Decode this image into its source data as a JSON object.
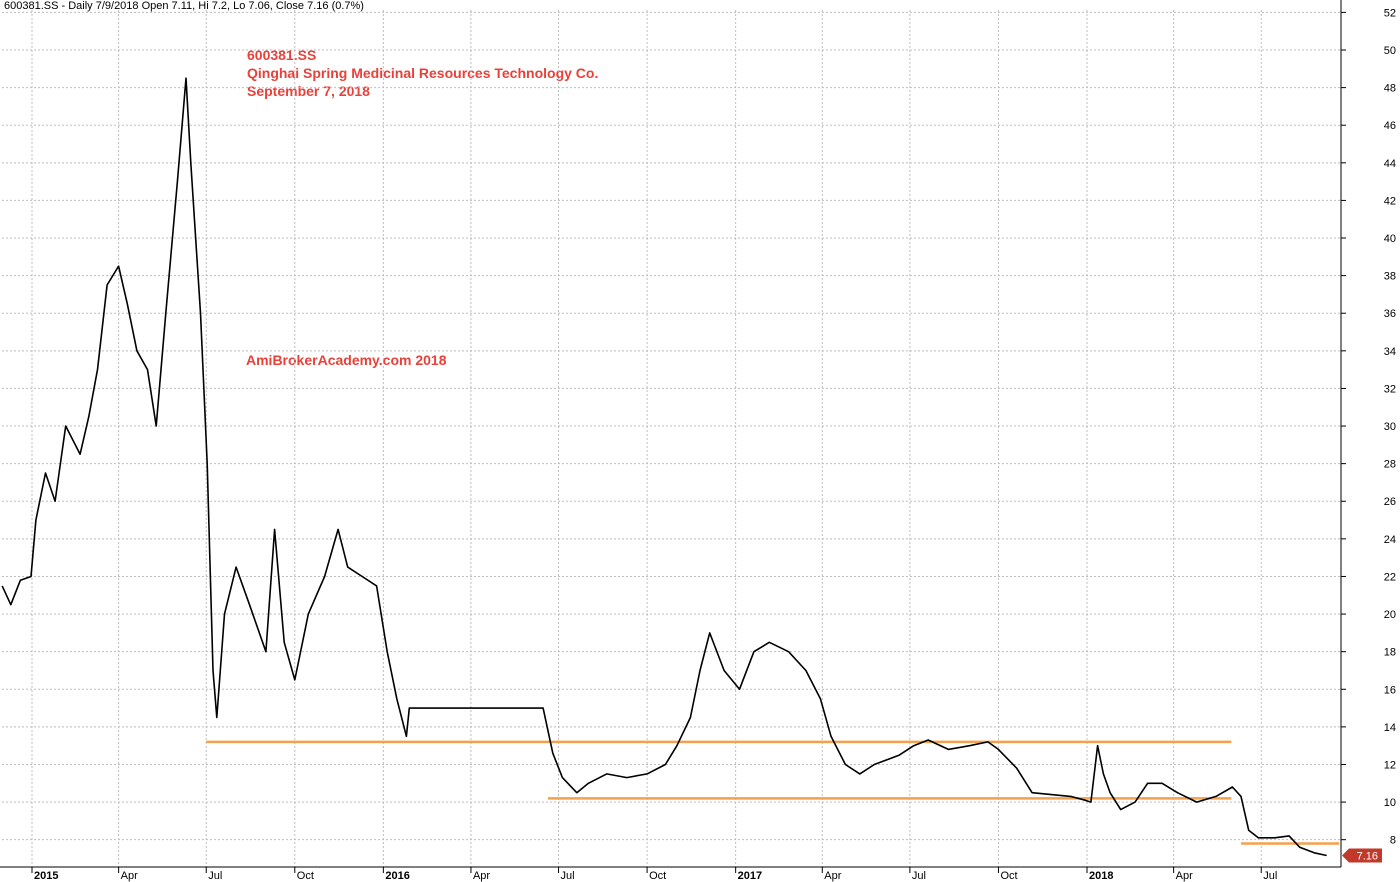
{
  "header": {
    "text": "600381.SS - Daily 7/9/2018 Open 7.11, Hi 7.2, Lo 7.06, Close 7.16 (0.7%)"
  },
  "annotations": {
    "ticker": "600381.SS",
    "company": "Qinghai Spring Medicinal Resources Technology Co.",
    "date": "September 7, 2018",
    "watermark": "AmiBrokerAcademy.com  2018"
  },
  "last_price_label": "7.16",
  "colors": {
    "price": "#000000",
    "support_lines": "#f5a04a",
    "annotation_text": "#e8413a",
    "last_price_badge": "#c0392b",
    "grid": "#bdbdbd"
  },
  "chart_data": {
    "type": "line",
    "y_axis_side": "right",
    "ylim": [
      6.6,
      52.5
    ],
    "yticks": [
      8,
      10,
      12,
      14,
      16,
      18,
      20,
      22,
      24,
      26,
      28,
      30,
      32,
      34,
      36,
      38,
      40,
      42,
      44,
      46,
      48,
      50,
      52
    ],
    "grid": true,
    "x_labels": [
      {
        "label": "2015",
        "date": "2015-01-01",
        "bold": true
      },
      {
        "label": "Apr",
        "date": "2015-04-01",
        "bold": false
      },
      {
        "label": "Jul",
        "date": "2015-07-01",
        "bold": false
      },
      {
        "label": "Oct",
        "date": "2015-10-01",
        "bold": false
      },
      {
        "label": "2016",
        "date": "2016-01-01",
        "bold": true
      },
      {
        "label": "Apr",
        "date": "2016-04-01",
        "bold": false
      },
      {
        "label": "Jul",
        "date": "2016-07-01",
        "bold": false
      },
      {
        "label": "Oct",
        "date": "2016-10-01",
        "bold": false
      },
      {
        "label": "2017",
        "date": "2017-01-01",
        "bold": true
      },
      {
        "label": "Apr",
        "date": "2017-04-01",
        "bold": false
      },
      {
        "label": "Jul",
        "date": "2017-07-01",
        "bold": false
      },
      {
        "label": "Oct",
        "date": "2017-10-01",
        "bold": false
      },
      {
        "label": "2018",
        "date": "2018-01-01",
        "bold": true
      },
      {
        "label": "Apr",
        "date": "2018-04-01",
        "bold": false
      },
      {
        "label": "Jul",
        "date": "2018-07-01",
        "bold": false
      }
    ],
    "series": [
      {
        "values": [
          {
            "date": "2014-12-01",
            "value": 21.5
          },
          {
            "date": "2014-12-10",
            "value": 20.5
          },
          {
            "date": "2014-12-20",
            "value": 21.8
          },
          {
            "date": "2014-12-31",
            "value": 22.0
          },
          {
            "date": "2015-01-05",
            "value": 25.0
          },
          {
            "date": "2015-01-15",
            "value": 27.5
          },
          {
            "date": "2015-01-25",
            "value": 26.0
          },
          {
            "date": "2015-02-05",
            "value": 30.0
          },
          {
            "date": "2015-02-20",
            "value": 28.5
          },
          {
            "date": "2015-03-01",
            "value": 30.5
          },
          {
            "date": "2015-03-10",
            "value": 33.0
          },
          {
            "date": "2015-03-20",
            "value": 37.5
          },
          {
            "date": "2015-04-01",
            "value": 38.5
          },
          {
            "date": "2015-04-10",
            "value": 36.5
          },
          {
            "date": "2015-04-20",
            "value": 34.0
          },
          {
            "date": "2015-05-01",
            "value": 33.0
          },
          {
            "date": "2015-05-10",
            "value": 30.0
          },
          {
            "date": "2015-05-20",
            "value": 36.0
          },
          {
            "date": "2015-06-01",
            "value": 43.0
          },
          {
            "date": "2015-06-10",
            "value": 48.5
          },
          {
            "date": "2015-06-15",
            "value": 44.0
          },
          {
            "date": "2015-06-25",
            "value": 36.0
          },
          {
            "date": "2015-07-02",
            "value": 28.0
          },
          {
            "date": "2015-07-08",
            "value": 17.0
          },
          {
            "date": "2015-07-12",
            "value": 14.5
          },
          {
            "date": "2015-07-20",
            "value": 20.0
          },
          {
            "date": "2015-08-01",
            "value": 22.5
          },
          {
            "date": "2015-08-15",
            "value": 20.5
          },
          {
            "date": "2015-09-01",
            "value": 18.0
          },
          {
            "date": "2015-09-10",
            "value": 24.5
          },
          {
            "date": "2015-09-20",
            "value": 18.5
          },
          {
            "date": "2015-10-01",
            "value": 16.5
          },
          {
            "date": "2015-10-15",
            "value": 20.0
          },
          {
            "date": "2015-11-01",
            "value": 22.0
          },
          {
            "date": "2015-11-15",
            "value": 24.5
          },
          {
            "date": "2015-11-25",
            "value": 22.5
          },
          {
            "date": "2015-12-10",
            "value": 22.0
          },
          {
            "date": "2015-12-25",
            "value": 21.5
          },
          {
            "date": "2016-01-05",
            "value": 18.0
          },
          {
            "date": "2016-01-15",
            "value": 15.5
          },
          {
            "date": "2016-01-25",
            "value": 13.5
          },
          {
            "date": "2016-01-28",
            "value": 15.0
          },
          {
            "date": "2016-06-15",
            "value": 15.0
          },
          {
            "date": "2016-06-25",
            "value": 12.6
          },
          {
            "date": "2016-07-05",
            "value": 11.3
          },
          {
            "date": "2016-07-20",
            "value": 10.5
          },
          {
            "date": "2016-08-01",
            "value": 11.0
          },
          {
            "date": "2016-08-20",
            "value": 11.5
          },
          {
            "date": "2016-09-10",
            "value": 11.3
          },
          {
            "date": "2016-10-01",
            "value": 11.5
          },
          {
            "date": "2016-10-20",
            "value": 12.0
          },
          {
            "date": "2016-11-01",
            "value": 13.0
          },
          {
            "date": "2016-11-15",
            "value": 14.5
          },
          {
            "date": "2016-11-25",
            "value": 17.0
          },
          {
            "date": "2016-12-05",
            "value": 19.0
          },
          {
            "date": "2016-12-20",
            "value": 17.0
          },
          {
            "date": "2017-01-05",
            "value": 16.0
          },
          {
            "date": "2017-01-20",
            "value": 18.0
          },
          {
            "date": "2017-02-05",
            "value": 18.5
          },
          {
            "date": "2017-02-25",
            "value": 18.0
          },
          {
            "date": "2017-03-15",
            "value": 17.0
          },
          {
            "date": "2017-03-30",
            "value": 15.5
          },
          {
            "date": "2017-04-10",
            "value": 13.5
          },
          {
            "date": "2017-04-25",
            "value": 12.0
          },
          {
            "date": "2017-05-10",
            "value": 11.5
          },
          {
            "date": "2017-05-25",
            "value": 12.0
          },
          {
            "date": "2017-06-20",
            "value": 12.5
          },
          {
            "date": "2017-07-05",
            "value": 13.0
          },
          {
            "date": "2017-07-20",
            "value": 13.3
          },
          {
            "date": "2017-08-10",
            "value": 12.8
          },
          {
            "date": "2017-09-01",
            "value": 13.0
          },
          {
            "date": "2017-09-20",
            "value": 13.2
          },
          {
            "date": "2017-10-01",
            "value": 12.8
          },
          {
            "date": "2017-10-20",
            "value": 11.8
          },
          {
            "date": "2017-11-05",
            "value": 10.5
          },
          {
            "date": "2017-11-25",
            "value": 10.4
          },
          {
            "date": "2017-12-15",
            "value": 10.3
          },
          {
            "date": "2017-12-30",
            "value": 10.1
          },
          {
            "date": "2018-01-05",
            "value": 10.0
          },
          {
            "date": "2018-01-12",
            "value": 13.0
          },
          {
            "date": "2018-01-18",
            "value": 11.5
          },
          {
            "date": "2018-01-25",
            "value": 10.5
          },
          {
            "date": "2018-02-05",
            "value": 9.6
          },
          {
            "date": "2018-02-20",
            "value": 10.0
          },
          {
            "date": "2018-03-05",
            "value": 11.0
          },
          {
            "date": "2018-03-20",
            "value": 11.0
          },
          {
            "date": "2018-04-05",
            "value": 10.5
          },
          {
            "date": "2018-04-25",
            "value": 10.0
          },
          {
            "date": "2018-05-15",
            "value": 10.3
          },
          {
            "date": "2018-06-01",
            "value": 10.8
          },
          {
            "date": "2018-06-10",
            "value": 10.3
          },
          {
            "date": "2018-06-18",
            "value": 8.5
          },
          {
            "date": "2018-06-28",
            "value": 8.1
          },
          {
            "date": "2018-07-15",
            "value": 8.1
          },
          {
            "date": "2018-07-30",
            "value": 8.2
          },
          {
            "date": "2018-08-10",
            "value": 7.6
          },
          {
            "date": "2018-08-25",
            "value": 7.3
          },
          {
            "date": "2018-09-07",
            "value": 7.16
          }
        ]
      }
    ],
    "horizontal_lines": [
      {
        "y": 13.2,
        "x_start": "2015-07-01",
        "x_end": "2018-05-31"
      },
      {
        "y": 10.2,
        "x_start": "2016-06-20",
        "x_end": "2018-05-31"
      },
      {
        "y": 7.8,
        "x_start": "2018-06-10",
        "x_end": "2018-09-20"
      }
    ],
    "last_value": 7.16
  }
}
